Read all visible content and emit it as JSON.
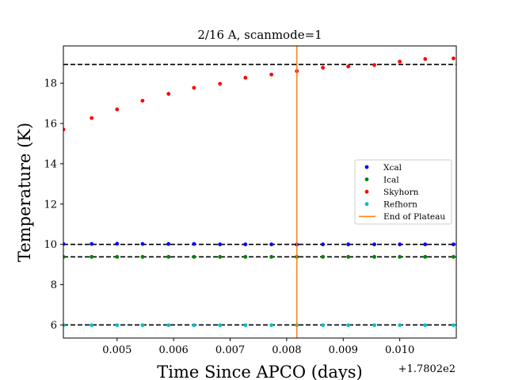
{
  "chart_data": {
    "type": "scatter",
    "title": "2/16 A, scanmode=1",
    "xlabel": "Time Since APCO (days)",
    "ylabel": "Temperature (K)",
    "x_offset_label": "+1.7802e2",
    "xlim": [
      0.00405,
      0.011
    ],
    "ylim": [
      5.35,
      19.85
    ],
    "x_ticks": [
      0.005,
      0.006,
      0.007,
      0.008,
      0.009,
      0.01
    ],
    "x_tick_labels": [
      "0.005",
      "0.006",
      "0.007",
      "0.008",
      "0.009",
      "0.010"
    ],
    "y_ticks": [
      6,
      8,
      10,
      12,
      14,
      16,
      18
    ],
    "y_tick_labels": [
      "6",
      "8",
      "10",
      "12",
      "14",
      "16",
      "18"
    ],
    "grid": false,
    "legend_position": "center-right",
    "x": [
      0.00405,
      0.00455,
      0.005,
      0.00545,
      0.00591,
      0.00636,
      0.00682,
      0.00727,
      0.00773,
      0.00818,
      0.00864,
      0.00909,
      0.00955,
      0.01,
      0.01045,
      0.01095
    ],
    "series": [
      {
        "name": "Xcal",
        "color": "#0000ff",
        "marker": "dot",
        "values": [
          10.02,
          10.02,
          10.03,
          10.02,
          10.02,
          10.02,
          10.0,
          10.0,
          10.0,
          9.99,
          10.0,
          10.0,
          10.0,
          10.0,
          10.0,
          10.0
        ]
      },
      {
        "name": "Ical",
        "color": "#008000",
        "marker": "dot",
        "values": [
          9.38,
          9.38,
          9.38,
          9.38,
          9.38,
          9.38,
          9.38,
          9.38,
          9.38,
          9.38,
          9.38,
          9.38,
          9.38,
          9.38,
          9.38,
          9.38
        ]
      },
      {
        "name": "Skyhorn",
        "color": "#ff0000",
        "marker": "dot",
        "values": [
          15.7,
          16.27,
          16.7,
          17.13,
          17.47,
          17.77,
          17.97,
          18.27,
          18.43,
          18.6,
          18.77,
          18.83,
          18.9,
          19.07,
          19.2,
          19.23
        ]
      },
      {
        "name": "Refhorn",
        "color": "#00bfbf",
        "marker": "dot",
        "values": [
          5.99,
          5.99,
          5.99,
          5.99,
          5.99,
          5.99,
          5.99,
          5.99,
          5.99,
          5.99,
          5.99,
          5.99,
          5.99,
          5.99,
          5.99,
          5.99
        ]
      }
    ],
    "hlines": [
      {
        "y": 18.93,
        "color": "#000000",
        "style": "dashed"
      },
      {
        "y": 10.0,
        "color": "#000000",
        "style": "dashed"
      },
      {
        "y": 9.38,
        "color": "#000000",
        "style": "dashed"
      },
      {
        "y": 6.0,
        "color": "#000000",
        "style": "dashed"
      }
    ],
    "vlines": [
      {
        "name": "End of Plateau",
        "x": 0.00818,
        "color": "#ff7f0e",
        "style": "solid"
      }
    ]
  }
}
